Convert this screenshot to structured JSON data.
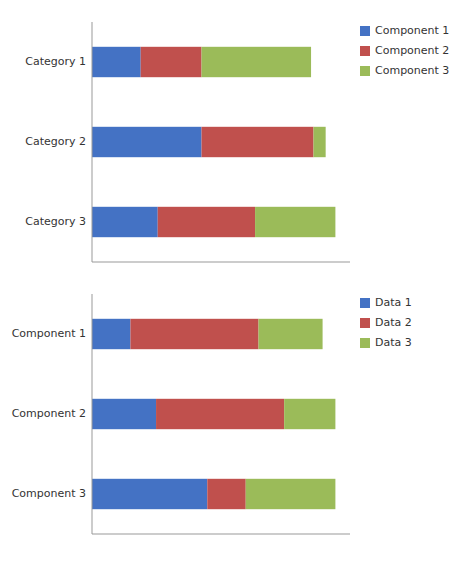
{
  "chart_data": [
    {
      "type": "bar",
      "orientation": "horizontal",
      "stacked": true,
      "categories": [
        "Category 1",
        "Category 2",
        "Category 3"
      ],
      "series": [
        {
          "name": "Component 1",
          "color": "#4472C4",
          "values": [
            2.0,
            4.5,
            2.7
          ]
        },
        {
          "name": "Component 2",
          "color": "#C0504D",
          "values": [
            2.5,
            4.6,
            4.0
          ]
        },
        {
          "name": "Component 3",
          "color": "#9BBB59",
          "values": [
            4.5,
            0.5,
            3.3
          ]
        }
      ],
      "xlim": [
        0,
        10.6
      ],
      "tick_labels": "y",
      "legend": "right",
      "grid": false
    },
    {
      "type": "bar",
      "orientation": "horizontal",
      "stacked": true,
      "categories": [
        "Component 1",
        "Component 2",
        "Component 3"
      ],
      "series": [
        {
          "name": "Data 1",
          "color": "#4472C4",
          "values": [
            1.5,
            2.5,
            4.5
          ]
        },
        {
          "name": "Data 2",
          "color": "#C0504D",
          "values": [
            5.0,
            5.0,
            1.5
          ]
        },
        {
          "name": "Data 3",
          "color": "#9BBB59",
          "values": [
            2.5,
            2.0,
            3.5
          ]
        }
      ],
      "xlim": [
        0,
        10.07
      ],
      "tick_labels": "y",
      "legend": "right",
      "grid": false
    }
  ]
}
